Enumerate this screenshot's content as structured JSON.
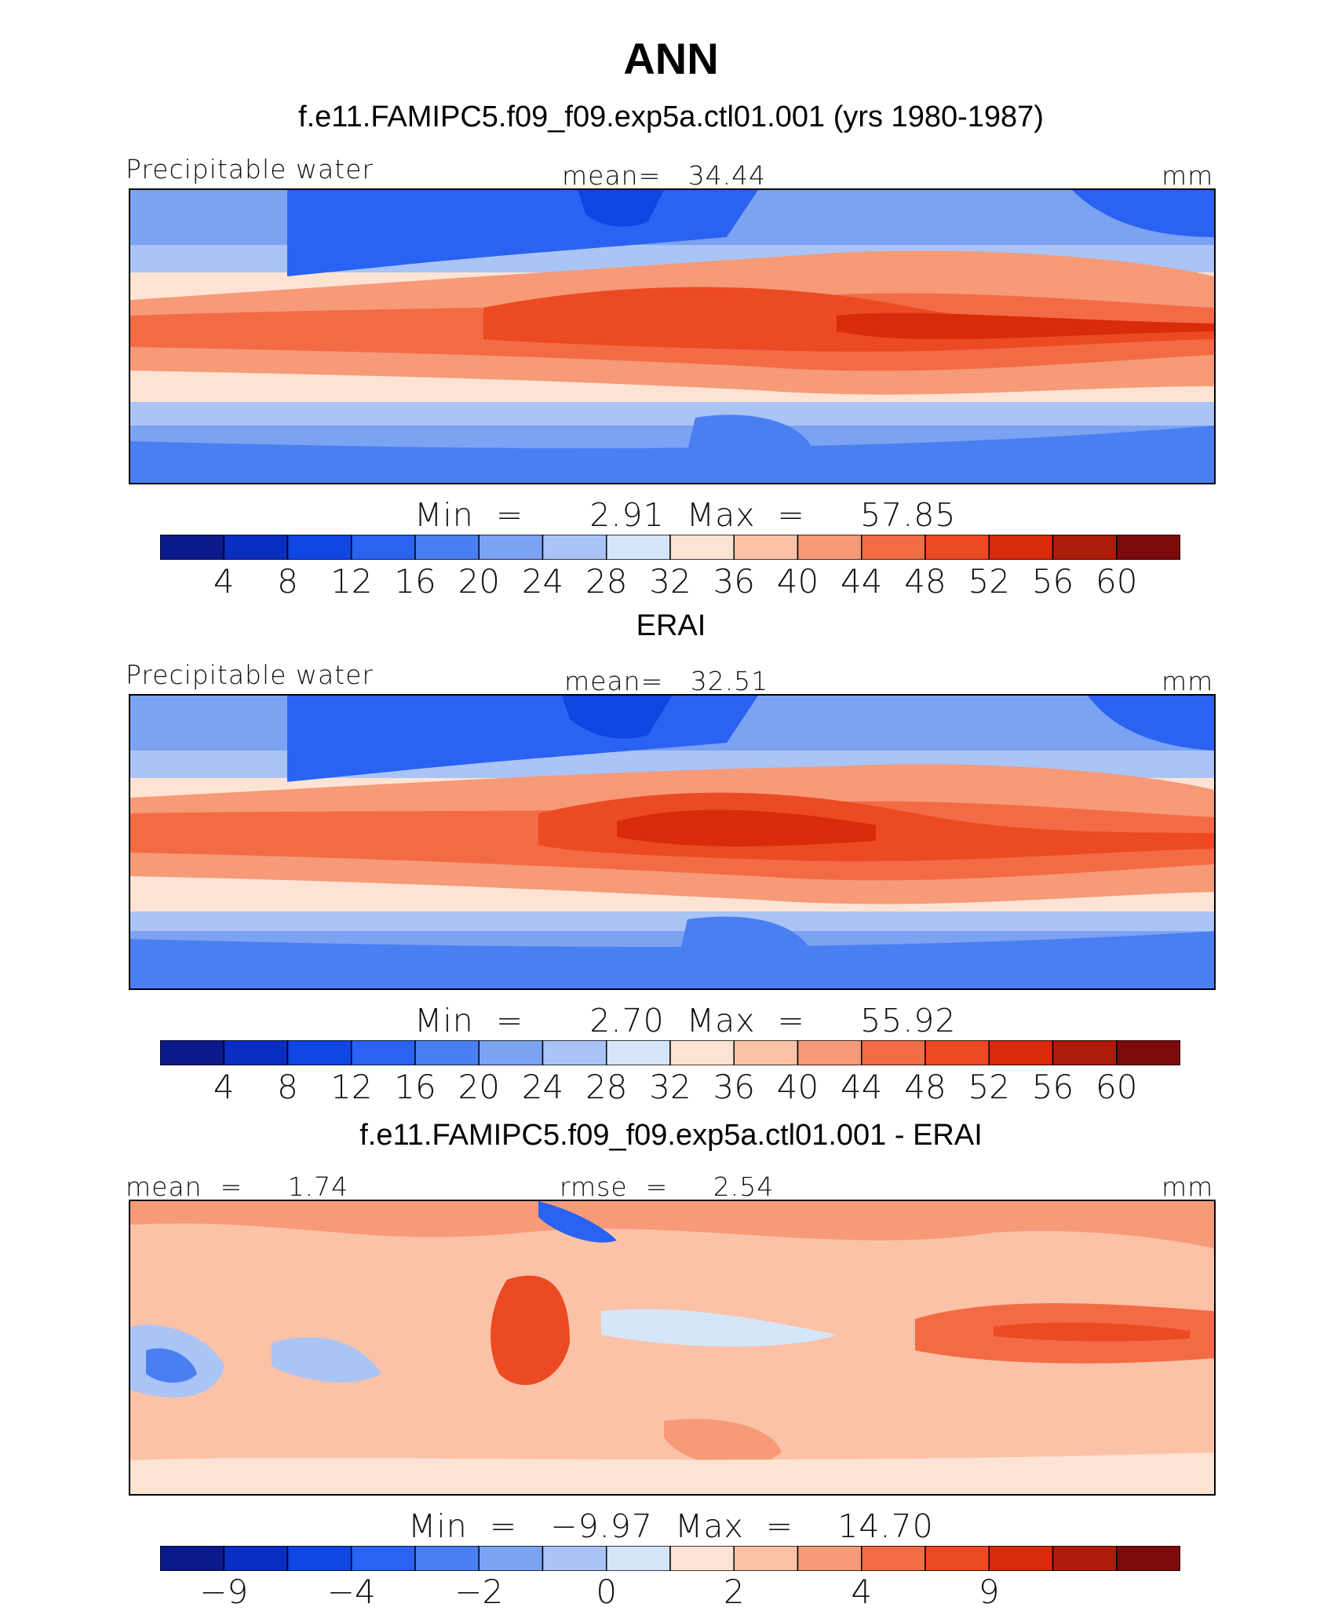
{
  "page": {
    "title": "ANN"
  },
  "panels": [
    {
      "id": "model",
      "subtitle": "f.e11.FAMIPC5.f09_f09.exp5a.ctl01.001 (yrs 1980-1987)",
      "left_label": "Precipitable water",
      "center_label": "mean=   34.44",
      "right_label": "mm",
      "minmax": "Min  =      2.91  Max  =     57.85"
    },
    {
      "id": "obs",
      "subtitle": "ERAI",
      "left_label": "Precipitable water",
      "center_label": "mean=   32.51",
      "right_label": "mm",
      "minmax": "Min  =      2.70  Max  =     55.92"
    },
    {
      "id": "diff",
      "subtitle": "f.e11.FAMIPC5.f09_f09.exp5a.ctl01.001 - ERAI",
      "left_label": "mean  =     1.74",
      "center_label": "rmse  =     2.54",
      "right_label": "mm",
      "minmax": "Min  =   −9.97  Max  =    14.70"
    }
  ],
  "chart_data": [
    {
      "type": "heatmap",
      "title": "Precipitable water",
      "units": "mm",
      "mean": 34.44,
      "min": 2.91,
      "max": 57.85,
      "colorbar": {
        "tick_labels": [
          "4",
          "8",
          "12",
          "16",
          "20",
          "24",
          "28",
          "32",
          "36",
          "40",
          "44",
          "48",
          "52",
          "56",
          "60"
        ],
        "colors": [
          "#0a1a8c",
          "#0a2dc2",
          "#0f45e0",
          "#2a62f2",
          "#4a7ff2",
          "#7ca2f2",
          "#aac4f6",
          "#d5e6fa",
          "#fde3d4",
          "#fbc2a8",
          "#f69a78",
          "#f36b44",
          "#ec4a22",
          "#d82b0a",
          "#ad1c0a",
          "#7d0a0a"
        ]
      },
      "legend": "bottom"
    },
    {
      "type": "heatmap",
      "title": "Precipitable water",
      "units": "mm",
      "mean": 32.51,
      "min": 2.7,
      "max": 55.92,
      "colorbar": {
        "tick_labels": [
          "4",
          "8",
          "12",
          "16",
          "20",
          "24",
          "28",
          "32",
          "36",
          "40",
          "44",
          "48",
          "52",
          "56",
          "60"
        ],
        "colors": [
          "#0a1a8c",
          "#0a2dc2",
          "#0f45e0",
          "#2a62f2",
          "#4a7ff2",
          "#7ca2f2",
          "#aac4f6",
          "#d5e6fa",
          "#fde3d4",
          "#fbc2a8",
          "#f69a78",
          "#f36b44",
          "#ec4a22",
          "#d82b0a",
          "#ad1c0a",
          "#7d0a0a"
        ]
      },
      "legend": "bottom"
    },
    {
      "type": "heatmap",
      "title": "f.e11.FAMIPC5.f09_f09.exp5a.ctl01.001 - ERAI",
      "units": "mm",
      "mean": 1.74,
      "rmse": 2.54,
      "min": -9.97,
      "max": 14.7,
      "colorbar": {
        "tick_labels": [
          "−9",
          "−4",
          "−2",
          "0",
          "2",
          "4",
          "9"
        ],
        "colors": [
          "#0a1a8c",
          "#0a2dc2",
          "#0f45e0",
          "#2a62f2",
          "#4a7ff2",
          "#7ca2f2",
          "#aac4f6",
          "#d5e6fa",
          "#fde3d4",
          "#fbc2a8",
          "#f69a78",
          "#f36b44",
          "#ec4a22",
          "#d82b0a",
          "#ad1c0a",
          "#7d0a0a"
        ]
      },
      "legend": "bottom"
    }
  ]
}
